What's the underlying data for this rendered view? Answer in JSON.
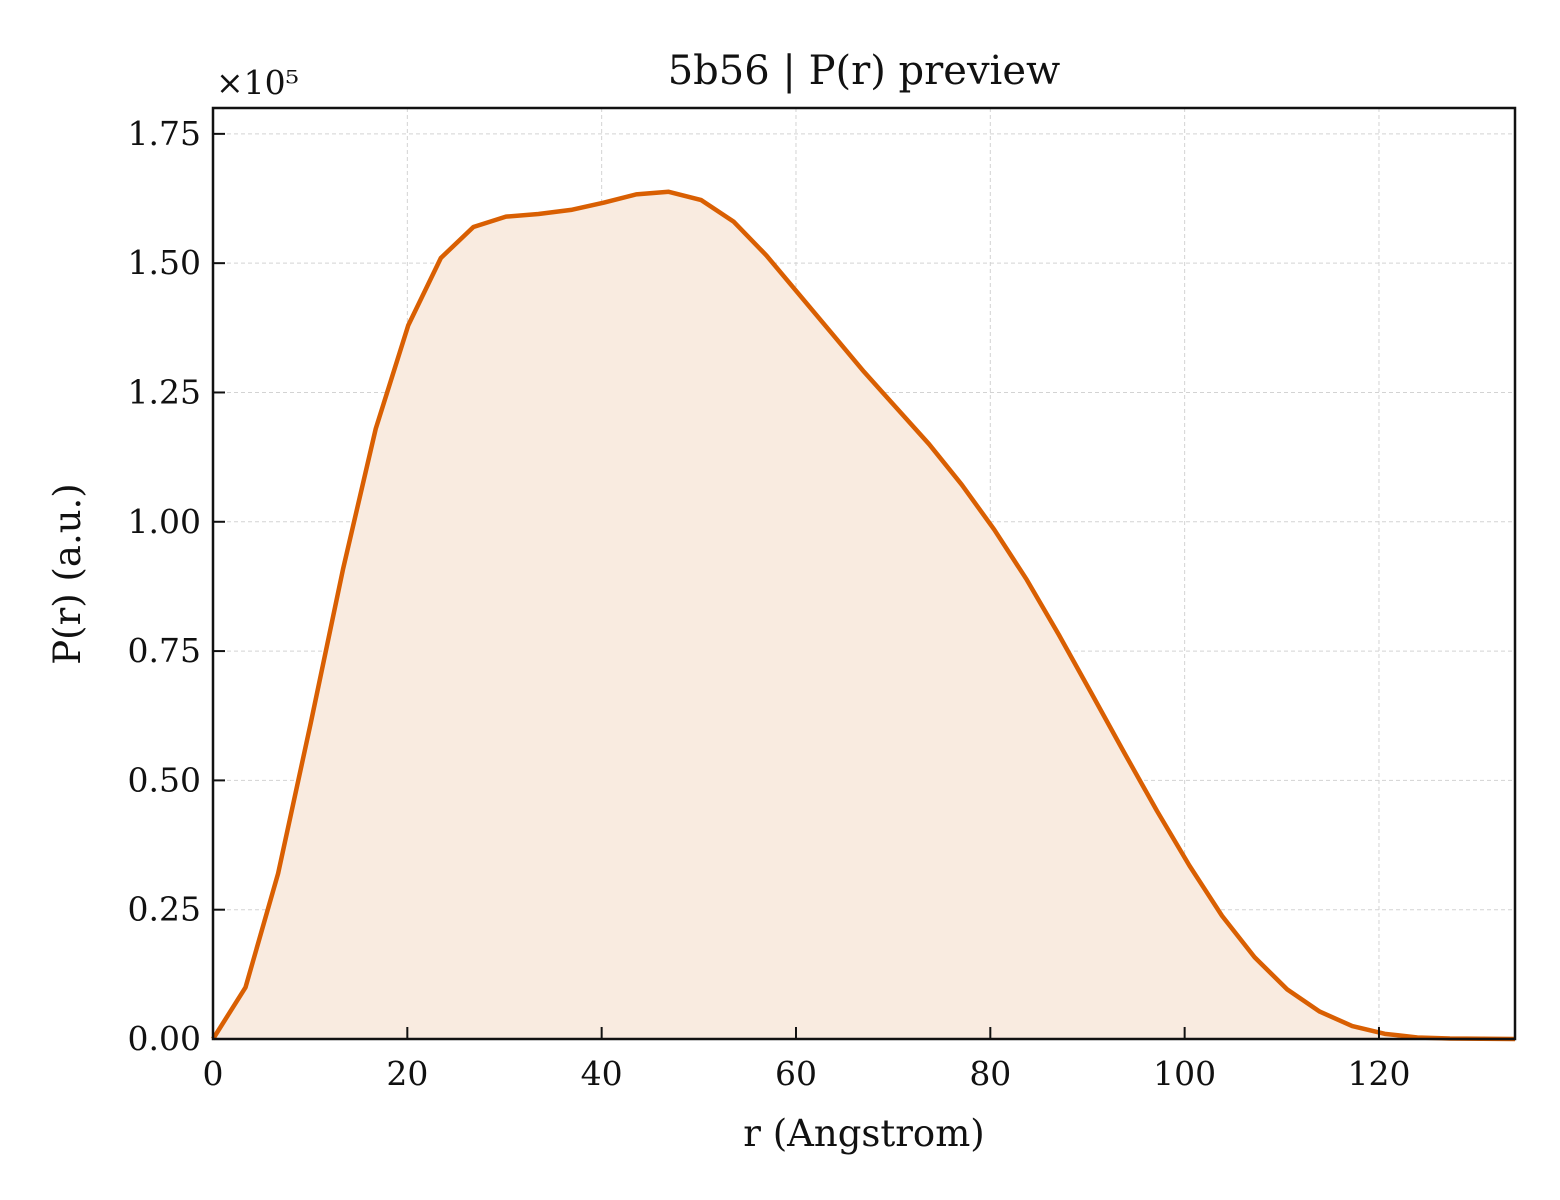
{
  "chart_data": {
    "type": "area",
    "title": "5b56 | P(r) preview",
    "xlabel": "r (Angstrom)",
    "ylabel": "P(r) (a.u.)",
    "y_scale_label": "×10⁵",
    "xlim": [
      0,
      134
    ],
    "ylim": [
      0,
      1.8
    ],
    "x_ticks": [
      0,
      20,
      40,
      60,
      80,
      100,
      120
    ],
    "y_ticks": [
      0.0,
      0.25,
      0.5,
      0.75,
      1.0,
      1.25,
      1.5,
      1.75
    ],
    "x_tick_labels": [
      "0",
      "20",
      "40",
      "60",
      "80",
      "100",
      "120"
    ],
    "y_tick_labels": [
      "0.00",
      "0.25",
      "0.50",
      "0.75",
      "1.00",
      "1.25",
      "1.50",
      "1.75"
    ],
    "grid": true,
    "tick_direction": "in",
    "line_color": "#d95f02",
    "fill_color": "#f9ebe0",
    "series": [
      {
        "x": [
          0,
          3.35,
          6.7,
          10.05,
          13.4,
          16.75,
          20.1,
          23.45,
          26.8,
          30.15,
          33.5,
          36.85,
          40.2,
          43.55,
          46.9,
          50.25,
          53.6,
          56.95,
          60.3,
          63.65,
          67.0,
          70.35,
          73.7,
          77.05,
          80.4,
          83.75,
          87.1,
          90.45,
          93.8,
          97.15,
          100.5,
          103.85,
          107.2,
          110.55,
          113.9,
          117.25,
          120.6,
          123.95,
          127.3,
          130.65,
          134.0
        ],
        "values": [
          0.0,
          0.1,
          0.32,
          0.61,
          0.91,
          1.18,
          1.38,
          1.51,
          1.57,
          1.59,
          1.595,
          1.603,
          1.617,
          1.633,
          1.638,
          1.622,
          1.58,
          1.515,
          1.44,
          1.365,
          1.29,
          1.22,
          1.15,
          1.072,
          0.985,
          0.888,
          0.78,
          0.667,
          0.553,
          0.441,
          0.335,
          0.238,
          0.158,
          0.096,
          0.053,
          0.025,
          0.01,
          0.003,
          0.001,
          0.0005,
          0.0
        ]
      }
    ]
  }
}
